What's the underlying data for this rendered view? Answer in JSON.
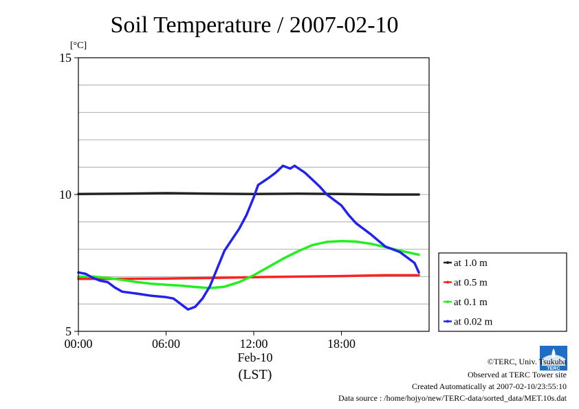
{
  "chart_data": {
    "type": "line",
    "title": "Soil Temperature / 2007-02-10",
    "ylabel": "[°C]",
    "xlabel": "(LST)",
    "date_label": "Feb-10",
    "ylim": [
      5,
      15
    ],
    "xlim": [
      0,
      24
    ],
    "yticks": [
      {
        "value": 5,
        "label": "5"
      },
      {
        "value": 10,
        "label": "10"
      },
      {
        "value": 15,
        "label": "15"
      }
    ],
    "xticks": [
      {
        "value": 0,
        "label": "00:00"
      },
      {
        "value": 6,
        "label": "06:00"
      },
      {
        "value": 12,
        "label": "12:00"
      },
      {
        "value": 18,
        "label": "18:00"
      }
    ],
    "series": [
      {
        "name": "at 1.0 m",
        "color": "#222222",
        "points": [
          [
            0,
            10.02
          ],
          [
            3,
            10.03
          ],
          [
            6,
            10.05
          ],
          [
            9,
            10.03
          ],
          [
            12,
            10.02
          ],
          [
            15,
            10.03
          ],
          [
            18,
            10.02
          ],
          [
            21,
            10.0
          ],
          [
            23.3,
            10.0
          ]
        ]
      },
      {
        "name": "at 0.5 m",
        "color": "#ff2020",
        "points": [
          [
            0,
            6.92
          ],
          [
            3,
            6.92
          ],
          [
            6,
            6.93
          ],
          [
            9,
            6.95
          ],
          [
            12,
            6.98
          ],
          [
            15,
            7.0
          ],
          [
            18,
            7.02
          ],
          [
            21,
            7.05
          ],
          [
            23.3,
            7.05
          ]
        ]
      },
      {
        "name": "at 0.1 m",
        "color": "#22ee22",
        "points": [
          [
            0,
            7.0
          ],
          [
            1,
            7.0
          ],
          [
            2,
            6.95
          ],
          [
            3,
            6.88
          ],
          [
            4,
            6.8
          ],
          [
            5,
            6.74
          ],
          [
            6,
            6.7
          ],
          [
            7,
            6.67
          ],
          [
            8,
            6.62
          ],
          [
            9,
            6.58
          ],
          [
            10,
            6.63
          ],
          [
            11,
            6.8
          ],
          [
            12,
            7.05
          ],
          [
            13,
            7.35
          ],
          [
            14,
            7.65
          ],
          [
            15,
            7.92
          ],
          [
            16,
            8.15
          ],
          [
            17,
            8.27
          ],
          [
            18,
            8.3
          ],
          [
            19,
            8.28
          ],
          [
            20,
            8.2
          ],
          [
            21,
            8.08
          ],
          [
            22,
            7.95
          ],
          [
            23.3,
            7.8
          ]
        ]
      },
      {
        "name": "at 0.02 m",
        "color": "#2222ee",
        "points": [
          [
            0,
            7.15
          ],
          [
            0.5,
            7.1
          ],
          [
            1,
            6.95
          ],
          [
            1.5,
            6.85
          ],
          [
            2,
            6.8
          ],
          [
            2.5,
            6.6
          ],
          [
            3,
            6.45
          ],
          [
            4,
            6.38
          ],
          [
            5,
            6.3
          ],
          [
            6,
            6.25
          ],
          [
            6.5,
            6.2
          ],
          [
            7,
            6.0
          ],
          [
            7.5,
            5.8
          ],
          [
            8,
            5.9
          ],
          [
            8.5,
            6.2
          ],
          [
            9,
            6.65
          ],
          [
            9.5,
            7.3
          ],
          [
            10,
            7.95
          ],
          [
            11,
            8.75
          ],
          [
            11.5,
            9.25
          ],
          [
            12,
            9.9
          ],
          [
            12.3,
            10.35
          ],
          [
            13,
            10.6
          ],
          [
            13.5,
            10.8
          ],
          [
            14,
            11.05
          ],
          [
            14.5,
            10.95
          ],
          [
            14.8,
            11.05
          ],
          [
            15.5,
            10.8
          ],
          [
            16,
            10.55
          ],
          [
            16.5,
            10.3
          ],
          [
            17,
            10.0
          ],
          [
            18,
            9.6
          ],
          [
            18.5,
            9.25
          ],
          [
            19,
            8.95
          ],
          [
            20,
            8.55
          ],
          [
            21,
            8.1
          ],
          [
            22,
            7.9
          ],
          [
            23,
            7.5
          ],
          [
            23.3,
            7.15
          ]
        ]
      }
    ]
  },
  "footer": {
    "copyright": "©TERC, Univ. Tsukuba",
    "observed": "Observed at TERC Tower site",
    "created": "Created Automatically at 2007-02-10/23:55:10",
    "source": "Data source : /home/hojyo/new/TERC-data/sorted_data/MET.10s.dat",
    "logo_text": "TERC"
  }
}
